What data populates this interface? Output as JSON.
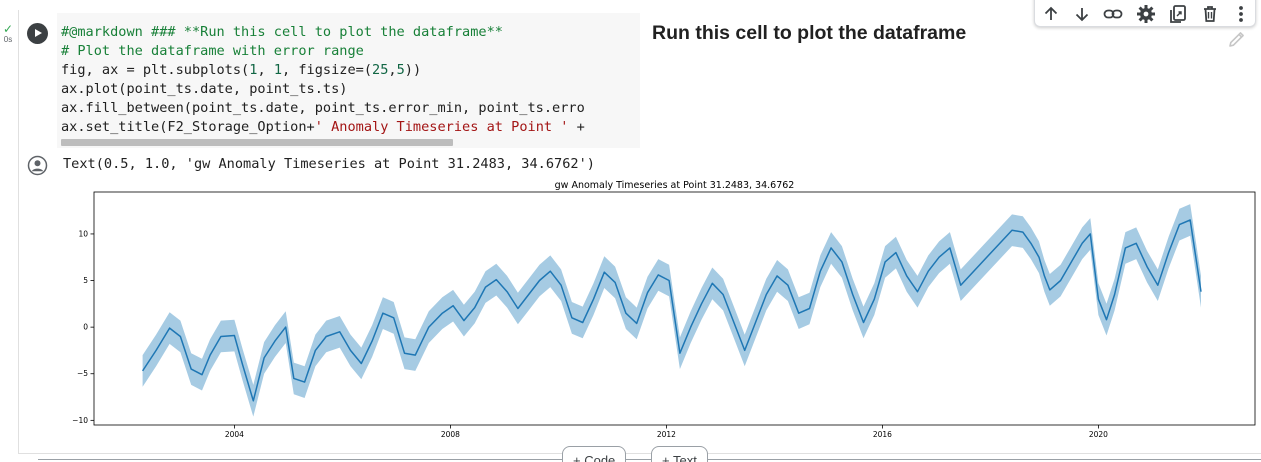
{
  "cell": {
    "status_check": "✓",
    "status_time": "0s",
    "code_lines": [
      [
        {
          "t": "#@markdown ### **Run this cell to plot the dataframe**",
          "c": "c-comment"
        }
      ],
      [
        {
          "t": "# Plot the dataframe with error range",
          "c": "c-comment"
        }
      ],
      [
        {
          "t": "fig, ax = plt.subplots(",
          "c": ""
        },
        {
          "t": "1",
          "c": "c-num"
        },
        {
          "t": ", ",
          "c": ""
        },
        {
          "t": "1",
          "c": "c-num"
        },
        {
          "t": ", figsize=(",
          "c": ""
        },
        {
          "t": "25",
          "c": "c-num"
        },
        {
          "t": ",",
          "c": ""
        },
        {
          "t": "5",
          "c": "c-num"
        },
        {
          "t": "))",
          "c": ""
        }
      ],
      [
        {
          "t": "ax.plot(point_ts.date, point_ts.ts)",
          "c": ""
        }
      ],
      [
        {
          "t": "ax.fill_between(point_ts.date, point_ts.error_min, point_ts.erro",
          "c": ""
        }
      ],
      [
        {
          "t": "ax.set_title(F2_Storage_Option+",
          "c": ""
        },
        {
          "t": "' Anomaly Timeseries at Point '",
          "c": "c-str"
        },
        {
          "t": " +",
          "c": ""
        }
      ]
    ],
    "markdown_heading": "Run this cell to plot the dataframe",
    "output_text": "Text(0.5, 1.0, 'gw Anomaly Timeseries at Point 31.2483, 34.6762')"
  },
  "toolbar": {
    "icons": [
      "arrow-up-icon",
      "arrow-down-icon",
      "link-icon",
      "gear-icon",
      "mirror-cell-icon",
      "trash-icon",
      "more-vert-icon"
    ]
  },
  "add_buttons": {
    "code_label": "+ Code",
    "text_label": "+ Text"
  },
  "colors": {
    "line": "#1f77b4",
    "band": "#a6cbe3"
  },
  "chart_data": {
    "type": "line",
    "title": "gw Anomaly Timeseries at Point 31.2483, 34.6762",
    "xlabel": "",
    "ylabel": "",
    "xlim": [
      2001.4,
      2022.9
    ],
    "ylim": [
      -10.5,
      14.5
    ],
    "x_ticks": [
      2004,
      2008,
      2012,
      2016,
      2020
    ],
    "y_ticks": [
      -10,
      -5,
      0,
      5,
      10
    ],
    "y_tick_labels": [
      "−10",
      "−5",
      "0",
      "5",
      "10"
    ],
    "band_halfwidth": 1.7,
    "series": [
      {
        "x": [
          2002.3,
          2002.55,
          2002.8,
          2003.0,
          2003.2,
          2003.4,
          2003.55,
          2003.75,
          2004.0,
          2004.15,
          2004.35,
          2004.55,
          2004.75,
          2004.95,
          2005.1,
          2005.3,
          2005.5,
          2005.7,
          2005.95,
          2006.15,
          2006.35,
          2006.55,
          2006.75,
          2006.95,
          2007.15,
          2007.35,
          2007.6,
          2007.85,
          2008.05,
          2008.25,
          2008.45,
          2008.65,
          2008.85,
          2009.05,
          2009.25,
          2009.45,
          2009.65,
          2009.85,
          2010.05,
          2010.25,
          2010.45,
          2010.65,
          2010.85,
          2011.05,
          2011.25,
          2011.45,
          2011.65,
          2011.85,
          2012.05,
          2012.25,
          2012.45,
          2012.65,
          2012.85,
          2013.05,
          2013.25,
          2013.45,
          2013.65,
          2013.85,
          2014.05,
          2014.25,
          2014.45,
          2014.65,
          2014.85,
          2015.05,
          2015.25,
          2015.45,
          2015.65,
          2015.85,
          2016.05,
          2016.25,
          2016.45,
          2016.65,
          2016.85,
          2017.05,
          2017.25,
          2017.45,
          2018.4,
          2018.6,
          2018.75,
          2018.9,
          2019.0,
          2019.1,
          2019.3,
          2019.5,
          2019.7,
          2019.85,
          2020.0,
          2020.15,
          2020.3,
          2020.5,
          2020.7,
          2020.9,
          2021.1,
          2021.3,
          2021.5,
          2021.7,
          2021.9
        ],
        "y": [
          -4.7,
          -2.5,
          -0.1,
          -1.0,
          -4.5,
          -5.1,
          -3.0,
          -1.0,
          -0.9,
          -4.0,
          -7.9,
          -3.3,
          -1.5,
          0.0,
          -5.5,
          -5.9,
          -2.5,
          -1.0,
          -0.5,
          -2.5,
          -3.9,
          -1.5,
          1.5,
          1.0,
          -2.8,
          -3.0,
          0.0,
          1.5,
          2.3,
          0.7,
          2.1,
          4.3,
          5.1,
          3.8,
          2.0,
          3.5,
          5.0,
          6.0,
          4.5,
          1.0,
          0.5,
          3.0,
          5.9,
          4.8,
          1.5,
          0.4,
          3.7,
          5.6,
          5.0,
          -2.8,
          0.0,
          2.5,
          4.7,
          3.5,
          0.5,
          -2.5,
          0.5,
          3.5,
          5.5,
          4.5,
          1.5,
          2.0,
          6.0,
          8.5,
          7.0,
          3.5,
          0.5,
          3.0,
          7.0,
          8.0,
          5.5,
          3.8,
          6.0,
          7.5,
          8.5,
          4.5,
          10.4,
          10.2,
          9.0,
          7.5,
          5.5,
          4.0,
          5.0,
          7.0,
          9.0,
          10.0,
          3.0,
          0.8,
          3.5,
          8.5,
          9.0,
          6.5,
          4.5,
          8.0,
          11.0,
          11.5,
          3.8
        ]
      }
    ]
  }
}
